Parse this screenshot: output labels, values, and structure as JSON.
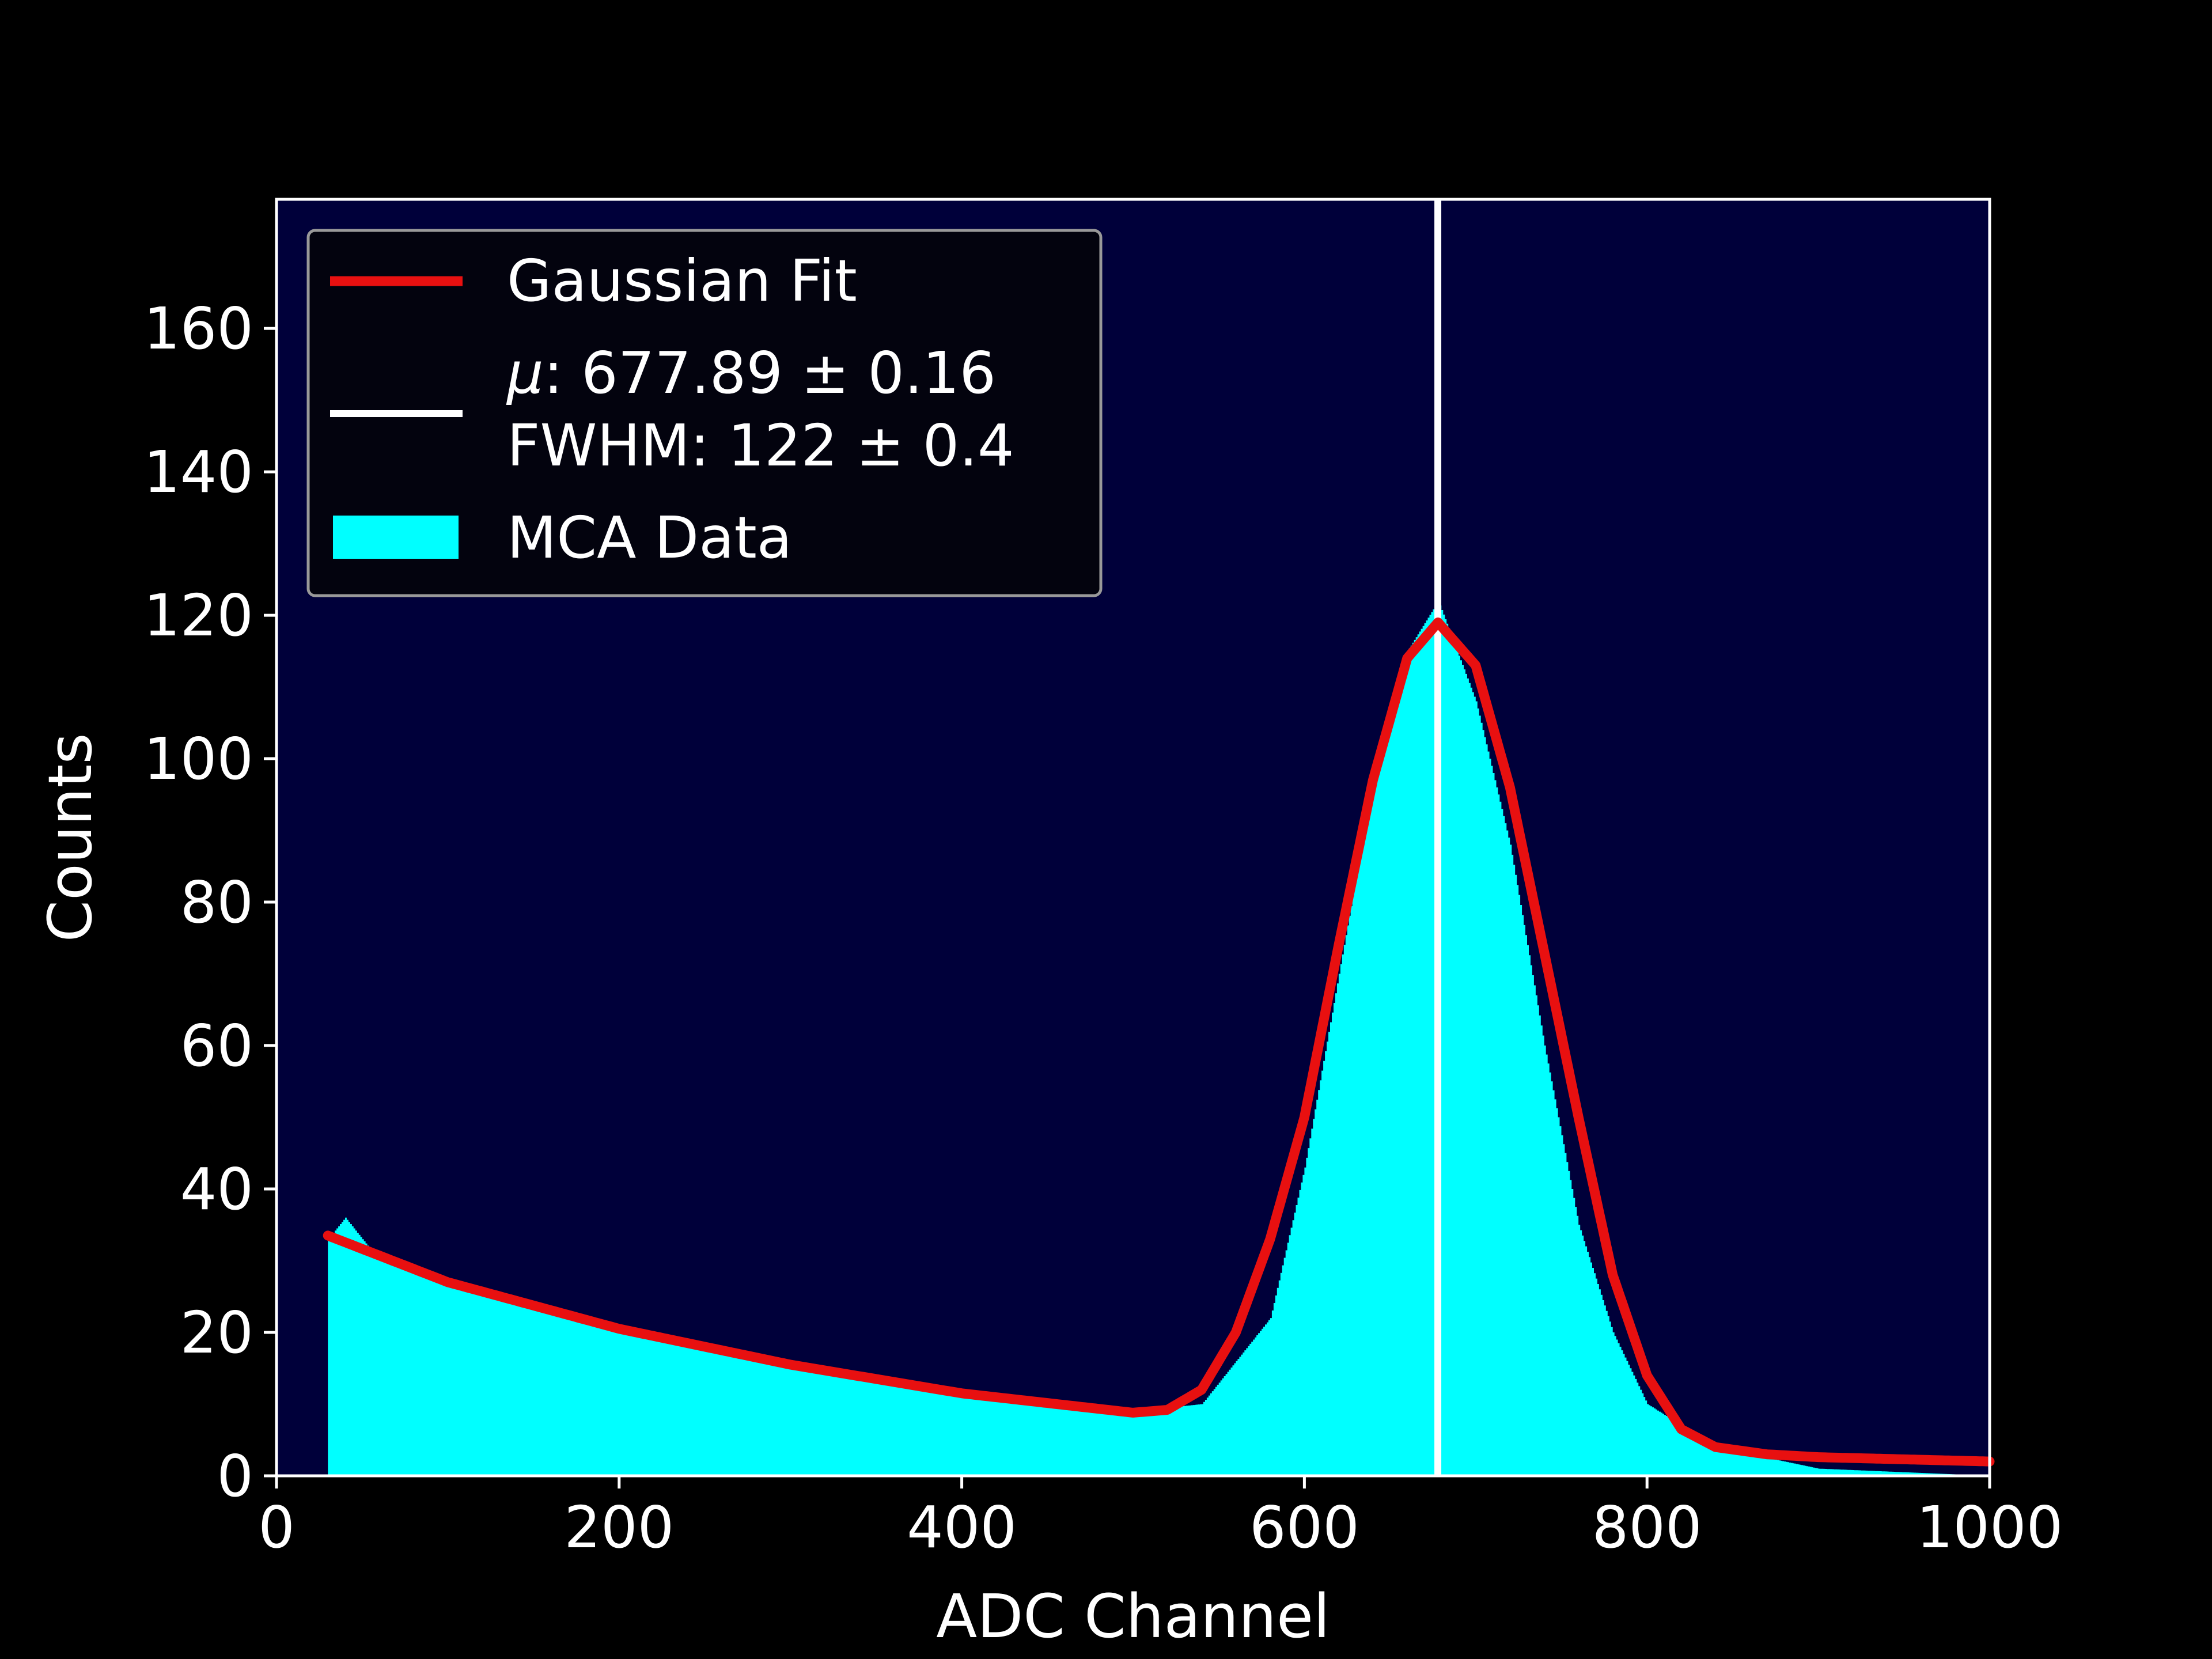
{
  "chart_data": {
    "type": "bar",
    "title": "",
    "xlabel": "ADC Channel",
    "ylabel": "Counts",
    "xlim": [
      0,
      1000
    ],
    "ylim": [
      0,
      178
    ],
    "xticks": [
      "0",
      "200",
      "400",
      "600",
      "800",
      "1000"
    ],
    "yticks": [
      "0",
      "20",
      "40",
      "60",
      "80",
      "100",
      "120",
      "140",
      "160"
    ],
    "grid": false,
    "legend_position": "top-left",
    "colors": {
      "figure_background": "#000000",
      "axes_background": "#00003a",
      "histogram": "#00ffff",
      "fit": "#e81010",
      "mean_line": "#ffffff"
    },
    "series": [
      {
        "name": "MCA Data",
        "kind": "histogram",
        "bin_width": 1,
        "x_start": 30,
        "x_end": 1000,
        "approx_profile": {
          "x": [
            30,
            40,
            60,
            100,
            200,
            300,
            400,
            500,
            540,
            580,
            600,
            620,
            640,
            660,
            678,
            700,
            720,
            740,
            760,
            780,
            800,
            840,
            900,
            1000
          ],
          "y": [
            33,
            36,
            30,
            27,
            20,
            15,
            11,
            9,
            10,
            22,
            43,
            70,
            97,
            115,
            122,
            108,
            88,
            60,
            35,
            20,
            10,
            4,
            1,
            0
          ]
        }
      },
      {
        "name": "Gaussian Fit",
        "kind": "line",
        "x": [
          30,
          100,
          200,
          300,
          400,
          500,
          520,
          540,
          560,
          580,
          600,
          620,
          640,
          660,
          678,
          700,
          720,
          740,
          760,
          780,
          800,
          820,
          840,
          870,
          900,
          1000
        ],
        "y": [
          33.5,
          27,
          20.5,
          15.5,
          11.5,
          8.8,
          9.2,
          12,
          20,
          33,
          50,
          74,
          97,
          114,
          119,
          113,
          96,
          73,
          50,
          28,
          14,
          6.5,
          4,
          3,
          2.6,
          2
        ]
      },
      {
        "name": "μ: 677.89 ± 0.16\nFWHM: 122 ± 0.4",
        "kind": "vline",
        "x": 677.89
      }
    ],
    "legend": [
      {
        "label": "Gaussian Fit",
        "marker": "line",
        "color": "#e81010"
      },
      {
        "label_line1_symbol": "μ",
        "label_line1_rest": ": 677.89 ± 0.16",
        "label_line2": "FWHM: 122 ± 0.4",
        "marker": "line",
        "color": "#ffffff"
      },
      {
        "label": "MCA Data",
        "marker": "patch",
        "color": "#00ffff"
      }
    ]
  }
}
